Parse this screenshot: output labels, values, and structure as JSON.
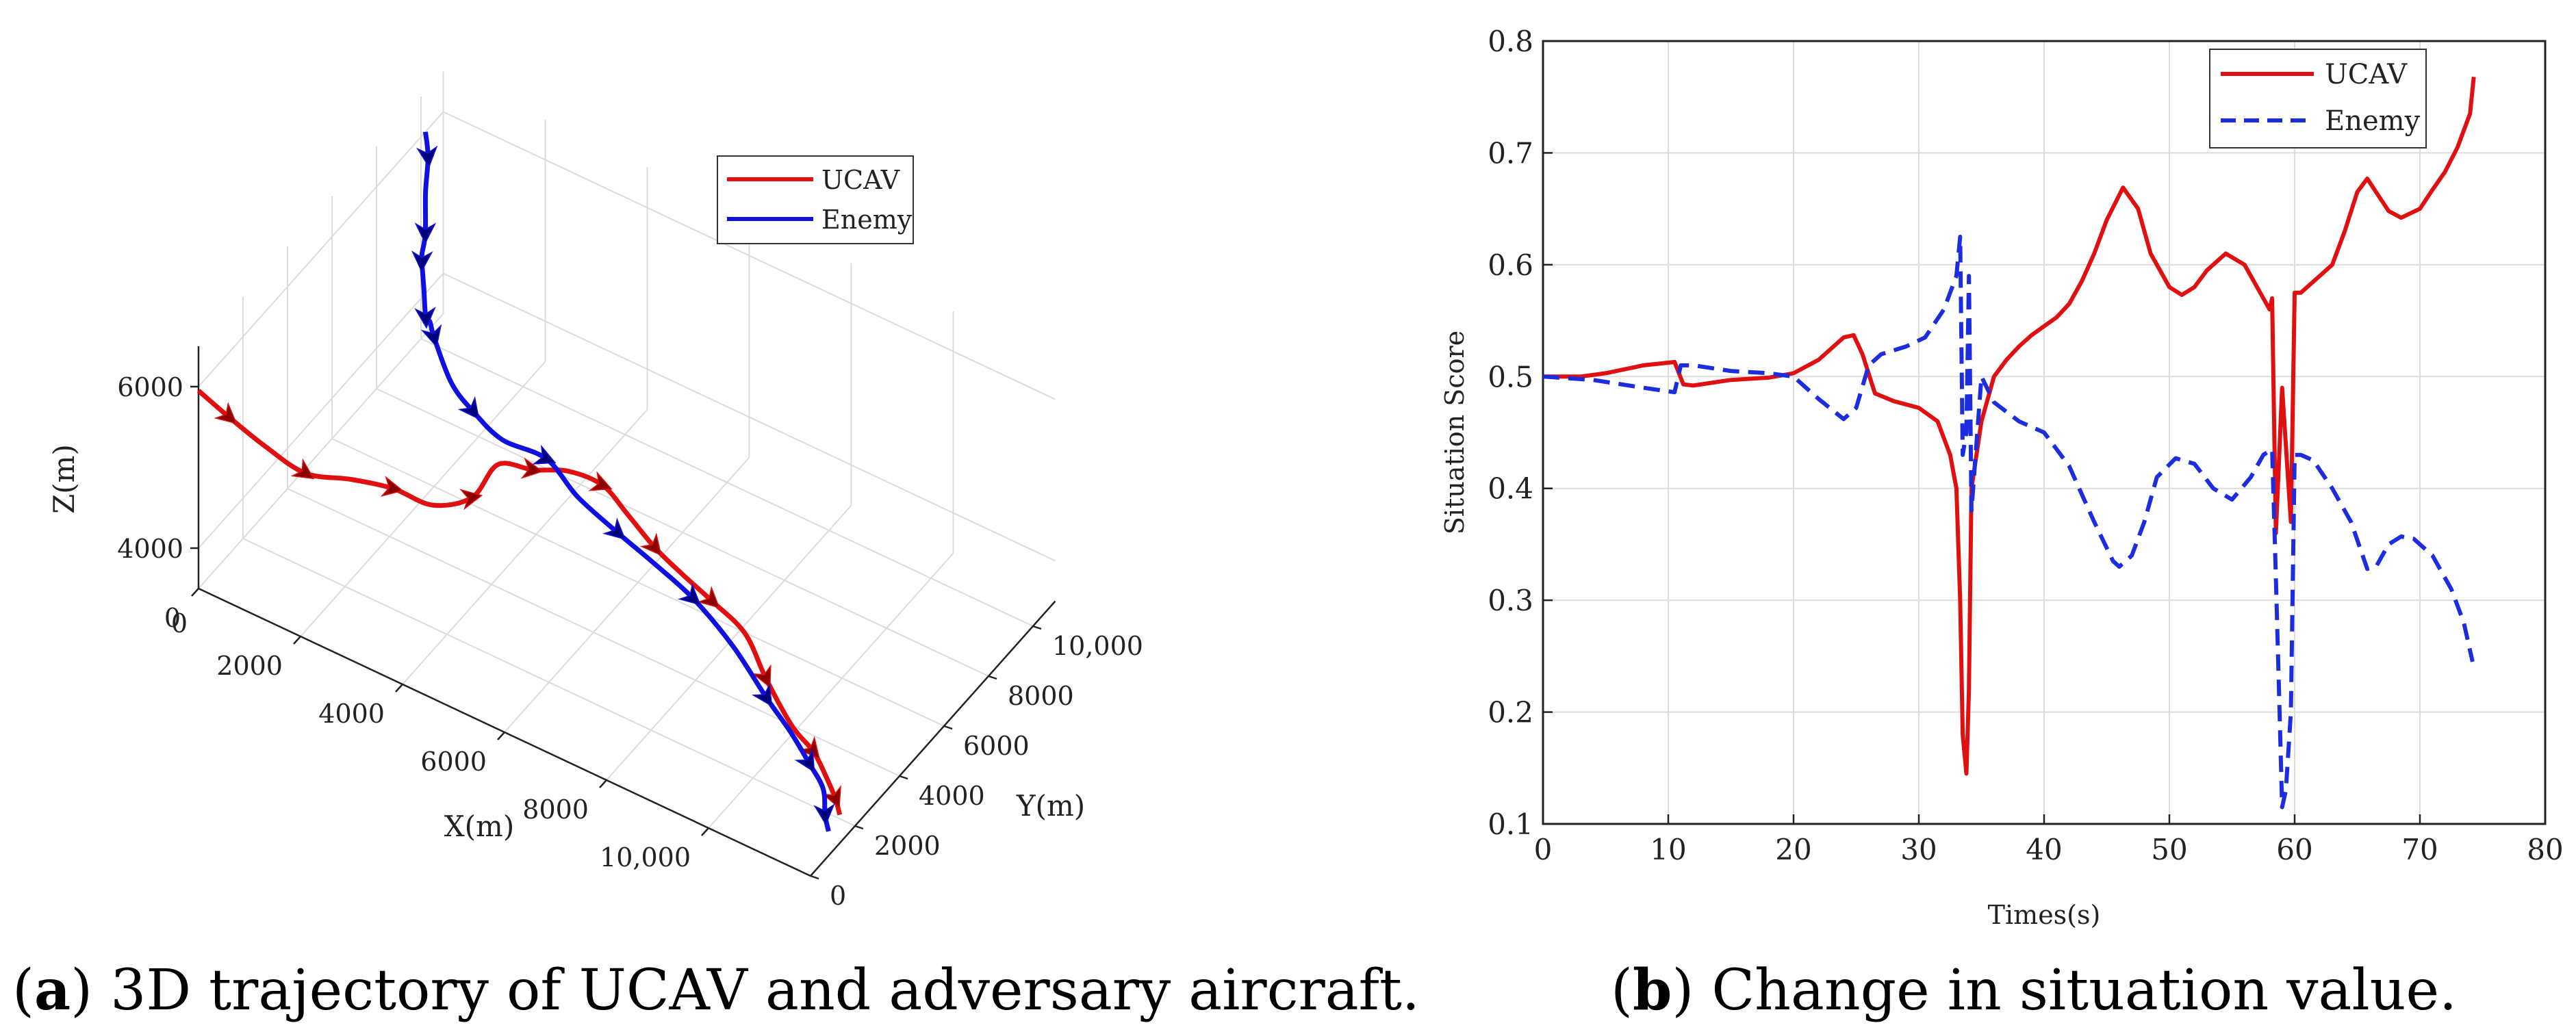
{
  "chart_data": [
    {
      "type": "line",
      "subtype": "3d-trajectory",
      "title": "",
      "xlabel": "X(m)",
      "ylabel": "Y(m)",
      "zlabel": "Z(m)",
      "xlim": [
        0,
        12000
      ],
      "ylim": [
        0,
        11000
      ],
      "zlim": [
        3500,
        6500
      ],
      "grid": true,
      "legend_position": "top-center",
      "x_ticks": [
        {
          "value": 0,
          "label": "0"
        },
        {
          "value": 2000,
          "label": "2000"
        },
        {
          "value": 4000,
          "label": "4000"
        },
        {
          "value": 6000,
          "label": "6000"
        },
        {
          "value": 8000,
          "label": "8000"
        },
        {
          "value": 10000,
          "label": "10,000"
        }
      ],
      "y_ticks": [
        {
          "value": 0,
          "label": "0"
        },
        {
          "value": 2000,
          "label": "2000"
        },
        {
          "value": 4000,
          "label": "4000"
        },
        {
          "value": 6000,
          "label": "6000"
        },
        {
          "value": 8000,
          "label": "8000"
        },
        {
          "value": 10000,
          "label": "10,000"
        }
      ],
      "z_ticks": [
        {
          "value": 4000,
          "label": "4000"
        },
        {
          "value": 6000,
          "label": "6000"
        }
      ],
      "series": [
        {
          "name": "UCAV",
          "color": "#e01010",
          "marker_color": "#8b0000",
          "style": "solid",
          "points": [
            [
              0,
              0,
              5950
            ],
            [
              600,
              0,
              5800
            ],
            [
              1300,
              0,
              5650
            ],
            [
              2100,
              0,
              5550
            ],
            [
              2900,
              200,
              5650
            ],
            [
              3600,
              500,
              5650
            ],
            [
              4200,
              900,
              5500
            ],
            [
              4800,
              1300,
              5650
            ],
            [
              5000,
              2000,
              5900
            ],
            [
              5600,
              2200,
              5950
            ],
            [
              6200,
              2400,
              6050
            ],
            [
              6700,
              2800,
              5900
            ],
            [
              7100,
              3000,
              5600
            ],
            [
              7600,
              3100,
              5300
            ],
            [
              8000,
              3400,
              5000
            ],
            [
              8500,
              3600,
              4750
            ],
            [
              9100,
              3700,
              4500
            ],
            [
              9600,
              3500,
              4150
            ],
            [
              10200,
              3300,
              3800
            ],
            [
              10700,
              3100,
              3700
            ],
            [
              11000,
              3000,
              3500
            ],
            [
              11400,
              2500,
              3500
            ],
            [
              11700,
              2000,
              3550
            ]
          ]
        },
        {
          "name": "Enemy",
          "color": "#1010e0",
          "marker_color": "#00007a",
          "style": "solid",
          "points": [
            [
              0,
              10200,
              6000
            ],
            [
              400,
              9400,
              6050
            ],
            [
              700,
              8600,
              5950
            ],
            [
              1000,
              7900,
              5750
            ],
            [
              1200,
              7300,
              5750
            ],
            [
              1500,
              6600,
              5950
            ],
            [
              1800,
              6000,
              5900
            ],
            [
              2100,
              5400,
              5800
            ],
            [
              2400,
              4900,
              6000
            ],
            [
              2700,
              4400,
              6050
            ],
            [
              3300,
              3800,
              5850
            ],
            [
              3900,
              3400,
              5800
            ],
            [
              4600,
              3100,
              5750
            ],
            [
              5600,
              2800,
              5900
            ],
            [
              6300,
              2600,
              5700
            ],
            [
              7000,
              2800,
              5400
            ],
            [
              7600,
              3000,
              5150
            ],
            [
              8300,
              3200,
              4850
            ],
            [
              9000,
              3400,
              4400
            ],
            [
              9700,
              3300,
              4000
            ],
            [
              10300,
              3000,
              3850
            ],
            [
              10800,
              2700,
              3700
            ],
            [
              11200,
              2400,
              3600
            ],
            [
              11500,
              1800,
              3550
            ],
            [
              11700,
              1500,
              3500
            ]
          ]
        }
      ],
      "caption_bold": "a",
      "caption_text": "3D trajectory of UCAV and adversary aircraft."
    },
    {
      "type": "line",
      "title": "",
      "xlabel": "Times(s)",
      "ylabel": "Situation Score",
      "xlim": [
        0,
        80
      ],
      "ylim": [
        0.1,
        0.8
      ],
      "grid": true,
      "legend_position": "top-right",
      "x_ticks": [
        {
          "value": 0,
          "label": "0"
        },
        {
          "value": 10,
          "label": "10"
        },
        {
          "value": 20,
          "label": "20"
        },
        {
          "value": 30,
          "label": "30"
        },
        {
          "value": 40,
          "label": "40"
        },
        {
          "value": 50,
          "label": "50"
        },
        {
          "value": 60,
          "label": "60"
        },
        {
          "value": 70,
          "label": "70"
        },
        {
          "value": 80,
          "label": "80"
        }
      ],
      "y_ticks": [
        {
          "value": 0.1,
          "label": "0.1"
        },
        {
          "value": 0.2,
          "label": "0.2"
        },
        {
          "value": 0.3,
          "label": "0.3"
        },
        {
          "value": 0.4,
          "label": "0.4"
        },
        {
          "value": 0.5,
          "label": "0.5"
        },
        {
          "value": 0.6,
          "label": "0.6"
        },
        {
          "value": 0.7,
          "label": "0.7"
        },
        {
          "value": 0.8,
          "label": "0.8"
        }
      ],
      "series": [
        {
          "name": "UCAV",
          "color": "#e01010",
          "style": "solid",
          "points": [
            [
              0,
              0.5
            ],
            [
              3,
              0.5
            ],
            [
              5,
              0.503
            ],
            [
              8,
              0.51
            ],
            [
              10.5,
              0.513
            ],
            [
              11.2,
              0.493
            ],
            [
              12,
              0.492
            ],
            [
              15,
              0.497
            ],
            [
              18,
              0.499
            ],
            [
              20,
              0.503
            ],
            [
              22,
              0.515
            ],
            [
              24,
              0.535
            ],
            [
              24.8,
              0.537
            ],
            [
              25.5,
              0.52
            ],
            [
              26.5,
              0.485
            ],
            [
              28,
              0.478
            ],
            [
              30,
              0.472
            ],
            [
              31.5,
              0.46
            ],
            [
              32.5,
              0.43
            ],
            [
              33.0,
              0.4
            ],
            [
              33.3,
              0.3
            ],
            [
              33.5,
              0.18
            ],
            [
              33.8,
              0.145
            ],
            [
              34.0,
              0.22
            ],
            [
              34.2,
              0.4
            ],
            [
              35,
              0.46
            ],
            [
              36,
              0.5
            ],
            [
              37,
              0.515
            ],
            [
              38,
              0.527
            ],
            [
              39,
              0.537
            ],
            [
              40,
              0.545
            ],
            [
              41,
              0.553
            ],
            [
              42,
              0.565
            ],
            [
              43,
              0.585
            ],
            [
              44,
              0.61
            ],
            [
              45,
              0.64
            ],
            [
              46.3,
              0.669
            ],
            [
              47.5,
              0.65
            ],
            [
              48.5,
              0.61
            ],
            [
              50,
              0.58
            ],
            [
              51,
              0.573
            ],
            [
              52,
              0.58
            ],
            [
              53,
              0.595
            ],
            [
              54.5,
              0.61
            ],
            [
              56,
              0.6
            ],
            [
              57,
              0.58
            ],
            [
              58.0,
              0.56
            ],
            [
              58.2,
              0.57
            ],
            [
              58.5,
              0.36
            ],
            [
              59.0,
              0.49
            ],
            [
              59.7,
              0.37
            ],
            [
              60.0,
              0.575
            ],
            [
              60.5,
              0.575
            ],
            [
              61,
              0.58
            ],
            [
              62,
              0.59
            ],
            [
              63,
              0.6
            ],
            [
              64,
              0.63
            ],
            [
              65,
              0.665
            ],
            [
              65.8,
              0.677
            ],
            [
              66.5,
              0.665
            ],
            [
              67.5,
              0.648
            ],
            [
              68.5,
              0.642
            ],
            [
              70,
              0.65
            ],
            [
              71,
              0.667
            ],
            [
              72,
              0.683
            ],
            [
              73,
              0.705
            ],
            [
              74,
              0.735
            ],
            [
              74.3,
              0.768
            ]
          ]
        },
        {
          "name": "Enemy",
          "color": "#1c2de0",
          "style": "dashed",
          "points": [
            [
              0,
              0.5
            ],
            [
              4,
              0.497
            ],
            [
              8,
              0.49
            ],
            [
              10.5,
              0.486
            ],
            [
              11,
              0.51
            ],
            [
              12,
              0.51
            ],
            [
              15,
              0.505
            ],
            [
              18,
              0.503
            ],
            [
              20,
              0.5
            ],
            [
              22,
              0.48
            ],
            [
              24,
              0.462
            ],
            [
              25,
              0.472
            ],
            [
              26,
              0.51
            ],
            [
              27,
              0.52
            ],
            [
              29,
              0.527
            ],
            [
              30.5,
              0.535
            ],
            [
              32,
              0.56
            ],
            [
              33.0,
              0.59
            ],
            [
              33.3,
              0.625
            ],
            [
              33.5,
              0.43
            ],
            [
              33.8,
              0.45
            ],
            [
              34.0,
              0.59
            ],
            [
              34.2,
              0.38
            ],
            [
              35,
              0.5
            ],
            [
              36,
              0.477
            ],
            [
              38,
              0.46
            ],
            [
              40,
              0.45
            ],
            [
              42,
              0.42
            ],
            [
              44,
              0.37
            ],
            [
              45.5,
              0.335
            ],
            [
              46,
              0.33
            ],
            [
              47,
              0.34
            ],
            [
              48,
              0.37
            ],
            [
              49,
              0.41
            ],
            [
              50.5,
              0.427
            ],
            [
              52,
              0.422
            ],
            [
              53.5,
              0.4
            ],
            [
              55,
              0.39
            ],
            [
              56.5,
              0.41
            ],
            [
              57.5,
              0.43
            ],
            [
              58.2,
              0.435
            ],
            [
              58.5,
              0.32
            ],
            [
              58.8,
              0.2
            ],
            [
              59.0,
              0.115
            ],
            [
              59.3,
              0.13
            ],
            [
              59.7,
              0.2
            ],
            [
              60.0,
              0.43
            ],
            [
              60.5,
              0.43
            ],
            [
              61.5,
              0.425
            ],
            [
              63,
              0.4
            ],
            [
              64.5,
              0.37
            ],
            [
              65.8,
              0.328
            ],
            [
              66.5,
              0.33
            ],
            [
              67.5,
              0.35
            ],
            [
              68.5,
              0.357
            ],
            [
              69.5,
              0.355
            ],
            [
              71,
              0.34
            ],
            [
              72.5,
              0.31
            ],
            [
              73.5,
              0.28
            ],
            [
              74.2,
              0.245
            ]
          ]
        }
      ],
      "caption_bold": "b",
      "caption_text": "Change in situation value."
    }
  ]
}
